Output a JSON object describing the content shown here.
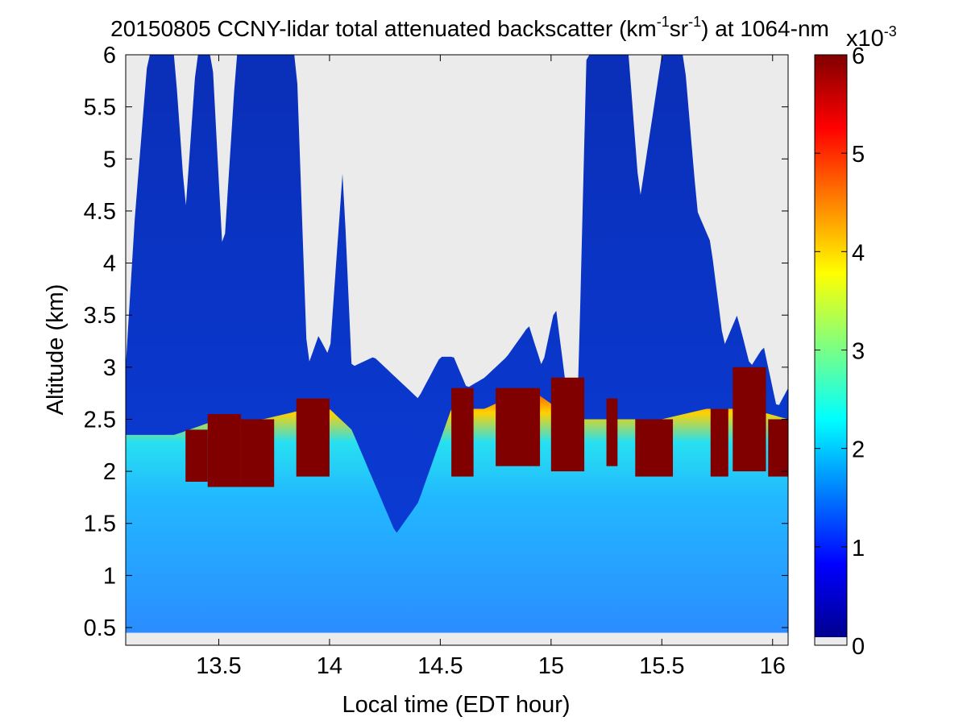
{
  "chart_data": {
    "type": "heatmap",
    "title": {
      "prefix": "20150805 CCNY-lidar total attenuated backscatter (km",
      "sup1": "-1",
      "mid": "sr",
      "sup2": "-1",
      "suffix": ") at 1064-nm"
    },
    "xlabel": "Local time (EDT hour)",
    "ylabel": "Altitude (km)",
    "xlim": [
      13.08,
      16.07
    ],
    "ylim": [
      0.33,
      6.0
    ],
    "data_ylim": [
      0.45,
      6.0
    ],
    "xticks": [
      13.5,
      14,
      14.5,
      15,
      15.5,
      16
    ],
    "xtick_labels": [
      "13.5",
      "14",
      "14.5",
      "15",
      "15.5",
      "16"
    ],
    "yticks": [
      0.5,
      1,
      1.5,
      2,
      2.5,
      3,
      3.5,
      4,
      4.5,
      5,
      5.5,
      6
    ],
    "ytick_labels": [
      "0.5",
      "1",
      "1.5",
      "2",
      "2.5",
      "3",
      "3.5",
      "4",
      "4.5",
      "5",
      "5.5",
      "6"
    ],
    "no_data_color": "#ebebeb",
    "colormap": "jet",
    "colorbar": {
      "range": [
        0,
        6
      ],
      "ticks": [
        0,
        1,
        2,
        3,
        4,
        5,
        6
      ],
      "tick_labels": [
        "0",
        "1",
        "2",
        "3",
        "4",
        "5",
        "6"
      ],
      "multiplier_base": "x10",
      "multiplier_exp": "-3",
      "no_data_band_color": "#ebebeb"
    },
    "signal_top_km": [
      {
        "t": 13.08,
        "top": 3.0
      },
      {
        "t": 13.12,
        "top": 4.4
      },
      {
        "t": 13.18,
        "top": 6.0
      },
      {
        "t": 13.3,
        "top": 6.0
      },
      {
        "t": 13.35,
        "top": 4.5
      },
      {
        "t": 13.4,
        "top": 6.0
      },
      {
        "t": 13.47,
        "top": 6.0
      },
      {
        "t": 13.52,
        "top": 4.0
      },
      {
        "t": 13.58,
        "top": 6.0
      },
      {
        "t": 13.75,
        "top": 6.0
      },
      {
        "t": 13.85,
        "top": 6.0
      },
      {
        "t": 13.9,
        "top": 3.0
      },
      {
        "t": 13.95,
        "top": 3.3
      },
      {
        "t": 14.0,
        "top": 3.1
      },
      {
        "t": 14.06,
        "top": 4.9
      },
      {
        "t": 14.1,
        "top": 3.0
      },
      {
        "t": 14.2,
        "top": 3.1
      },
      {
        "t": 14.3,
        "top": 2.9
      },
      {
        "t": 14.4,
        "top": 2.7
      },
      {
        "t": 14.5,
        "top": 3.1
      },
      {
        "t": 14.56,
        "top": 3.1
      },
      {
        "t": 14.62,
        "top": 2.8
      },
      {
        "t": 14.7,
        "top": 2.9
      },
      {
        "t": 14.8,
        "top": 3.1
      },
      {
        "t": 14.9,
        "top": 3.4
      },
      {
        "t": 14.96,
        "top": 3.0
      },
      {
        "t": 15.02,
        "top": 3.6
      },
      {
        "t": 15.08,
        "top": 2.6
      },
      {
        "t": 15.12,
        "top": 2.6
      },
      {
        "t": 15.16,
        "top": 6.0
      },
      {
        "t": 15.35,
        "top": 6.0
      },
      {
        "t": 15.4,
        "top": 4.6
      },
      {
        "t": 15.5,
        "top": 6.0
      },
      {
        "t": 15.6,
        "top": 6.0
      },
      {
        "t": 15.66,
        "top": 4.5
      },
      {
        "t": 15.72,
        "top": 4.2
      },
      {
        "t": 15.78,
        "top": 3.2
      },
      {
        "t": 15.84,
        "top": 3.5
      },
      {
        "t": 15.9,
        "top": 3.0
      },
      {
        "t": 15.96,
        "top": 3.2
      },
      {
        "t": 16.02,
        "top": 2.6
      },
      {
        "t": 16.07,
        "top": 2.8
      }
    ],
    "boundary_layer_top_km": [
      {
        "t": 13.08,
        "top": 2.35
      },
      {
        "t": 13.3,
        "top": 2.35
      },
      {
        "t": 13.5,
        "top": 2.5
      },
      {
        "t": 13.7,
        "top": 2.5
      },
      {
        "t": 13.9,
        "top": 2.6
      },
      {
        "t": 14.0,
        "top": 2.6
      },
      {
        "t": 14.1,
        "top": 2.4
      },
      {
        "t": 14.3,
        "top": 1.4
      },
      {
        "t": 14.4,
        "top": 1.7
      },
      {
        "t": 14.55,
        "top": 2.6
      },
      {
        "t": 14.7,
        "top": 2.6
      },
      {
        "t": 14.9,
        "top": 2.8
      },
      {
        "t": 15.1,
        "top": 2.5
      },
      {
        "t": 15.3,
        "top": 2.5
      },
      {
        "t": 15.5,
        "top": 2.5
      },
      {
        "t": 15.7,
        "top": 2.6
      },
      {
        "t": 15.9,
        "top": 2.6
      },
      {
        "t": 16.07,
        "top": 2.5
      }
    ],
    "cloud_layers": [
      {
        "t0": 13.35,
        "t1": 13.45,
        "bottom": 1.9,
        "top": 2.4
      },
      {
        "t0": 13.45,
        "t1": 13.6,
        "bottom": 1.85,
        "top": 2.55
      },
      {
        "t0": 13.6,
        "t1": 13.75,
        "bottom": 1.85,
        "top": 2.5
      },
      {
        "t0": 13.85,
        "t1": 14.0,
        "bottom": 1.95,
        "top": 2.7
      },
      {
        "t0": 14.55,
        "t1": 14.65,
        "bottom": 1.95,
        "top": 2.8
      },
      {
        "t0": 14.75,
        "t1": 14.95,
        "bottom": 2.05,
        "top": 2.8
      },
      {
        "t0": 15.0,
        "t1": 15.15,
        "bottom": 2.0,
        "top": 2.9
      },
      {
        "t0": 15.25,
        "t1": 15.3,
        "bottom": 2.05,
        "top": 2.7
      },
      {
        "t0": 15.38,
        "t1": 15.55,
        "bottom": 1.95,
        "top": 2.5
      },
      {
        "t0": 15.72,
        "t1": 15.8,
        "bottom": 1.95,
        "top": 2.6
      },
      {
        "t0": 15.82,
        "t1": 15.97,
        "bottom": 2.0,
        "top": 3.0
      },
      {
        "t0": 15.98,
        "t1": 16.07,
        "bottom": 1.95,
        "top": 2.5
      }
    ]
  }
}
